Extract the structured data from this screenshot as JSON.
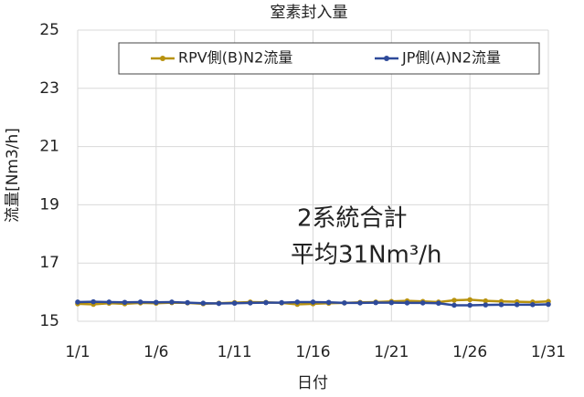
{
  "chart_data": {
    "type": "line",
    "title": "窒素封入量",
    "x_label": "日付",
    "y_label": "流量[Nm3/h]",
    "annotations": [
      "2系統合計",
      "平均31Nm³/h"
    ],
    "categories": [
      "1/1",
      null,
      null,
      null,
      null,
      "1/6",
      null,
      null,
      null,
      null,
      "1/11",
      null,
      null,
      null,
      null,
      "1/16",
      null,
      null,
      null,
      null,
      "1/21",
      null,
      null,
      null,
      null,
      "1/26",
      null,
      null,
      null,
      null,
      "1/31"
    ],
    "series": [
      {
        "name": "RPV側(B)N2流量",
        "color": "#b8920e",
        "values": [
          15.6,
          15.58,
          15.62,
          15.6,
          15.63,
          15.62,
          15.64,
          15.63,
          15.6,
          15.62,
          15.64,
          15.66,
          15.65,
          15.63,
          15.58,
          15.6,
          15.62,
          15.63,
          15.65,
          15.66,
          15.68,
          15.7,
          15.68,
          15.66,
          15.72,
          15.74,
          15.7,
          15.68,
          15.67,
          15.66,
          15.68
        ]
      },
      {
        "name": "JP側(A)N2流量",
        "color": "#2e4a9a",
        "values": [
          15.66,
          15.67,
          15.66,
          15.65,
          15.66,
          15.65,
          15.66,
          15.64,
          15.62,
          15.61,
          15.62,
          15.63,
          15.64,
          15.64,
          15.66,
          15.66,
          15.65,
          15.63,
          15.63,
          15.64,
          15.64,
          15.63,
          15.63,
          15.62,
          15.55,
          15.55,
          15.56,
          15.57,
          15.57,
          15.57,
          15.58
        ]
      }
    ],
    "ylim": [
      15,
      25
    ],
    "yticks": [
      15,
      17,
      19,
      21,
      23,
      25
    ],
    "grid": true,
    "legend": "top"
  }
}
